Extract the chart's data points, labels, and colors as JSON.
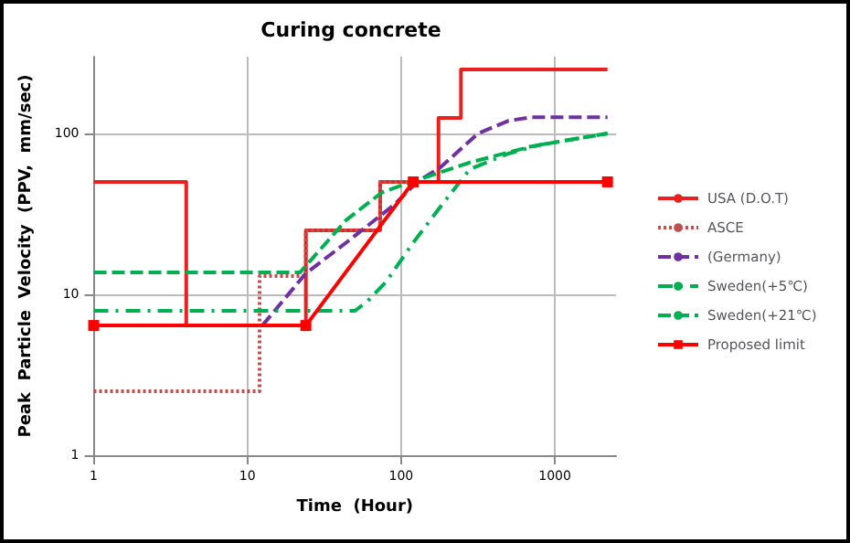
{
  "chart_data": {
    "type": "line",
    "title": "Curing concrete",
    "xlabel": "Time  (Hour)",
    "ylabel": "Peak  Particle  Velocity  (PPV,  mm/sec)",
    "log": "xy",
    "xlim": [
      1,
      2500
    ],
    "ylim": [
      1,
      300
    ],
    "xticks": [
      1,
      10,
      100,
      1000
    ],
    "yticks": [
      1,
      10,
      100
    ],
    "grid": true,
    "legend": "right",
    "series": [
      {
        "name": "USA (D.O.T)",
        "color": "#e8211f",
        "line_style": "solid",
        "marker": "none",
        "x": [
          1,
          4,
          4,
          24,
          24,
          73,
          73,
          175,
          175,
          245,
          245,
          2200
        ],
        "values": [
          50,
          50,
          6.4,
          6.4,
          25,
          25,
          50,
          50,
          125,
          125,
          250,
          250
        ]
      },
      {
        "name": "ASCE",
        "color": "#c0504d",
        "line_style": "dotted",
        "marker": "none",
        "x": [
          1,
          12,
          12,
          24,
          24,
          73,
          73,
          2200
        ],
        "values": [
          2.5,
          2.5,
          13,
          13,
          25,
          25,
          50,
          50
        ]
      },
      {
        "name": "(Germany)",
        "color": "#7030a0",
        "line_style": "dashed",
        "marker": "none",
        "x": [
          12.5,
          24,
          44,
          90,
          127,
          178,
          317,
          500,
          700,
          2200
        ],
        "values": [
          6.4,
          13.5,
          21,
          36,
          50,
          61,
          100,
          120,
          126,
          126
        ]
      },
      {
        "name": "Sweden(+5℃)",
        "color": "#00b050",
        "line_style": "dashdot",
        "marker": "none",
        "x": [
          1,
          50,
          60,
          80,
          120,
          180,
          280,
          500,
          800,
          2200
        ],
        "values": [
          7.9,
          7.9,
          9,
          12,
          21,
          35,
          60,
          75,
          85,
          100
        ]
      },
      {
        "name": "Sweden(+21℃)",
        "color": "#00b050",
        "line_style": "dashed",
        "marker": "none",
        "x": [
          1,
          22,
          26,
          44,
          75,
          117,
          280,
          700,
          2200
        ],
        "values": [
          13.7,
          13.7,
          16.4,
          29,
          43,
          50,
          66,
          83,
          100
        ]
      },
      {
        "name": "Proposed limit",
        "color": "#ff0000",
        "line_style": "solid",
        "marker": "square",
        "x": [
          1,
          24,
          120,
          2200
        ],
        "values": [
          6.4,
          6.4,
          50,
          50
        ]
      }
    ]
  }
}
